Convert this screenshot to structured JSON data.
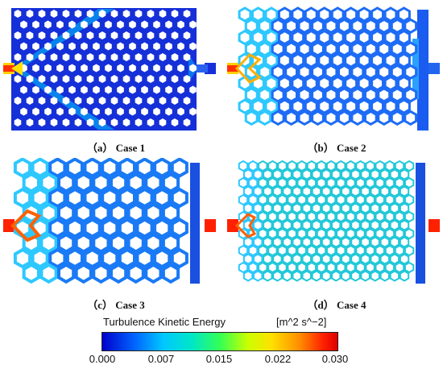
{
  "panels": [
    {
      "id": "case1",
      "caption": "（a） Case 1"
    },
    {
      "id": "case2",
      "caption": "（b） Case 2"
    },
    {
      "id": "case3",
      "caption": "（c） Case 3"
    },
    {
      "id": "case4",
      "caption": "（d） Case 4"
    }
  ],
  "colorbar": {
    "title": "Turbulence Kinetic Energy",
    "units": "[m^2 s^−2]",
    "ticks": [
      "0.000",
      "0.007",
      "0.015",
      "0.022",
      "0.030"
    ],
    "min": 0.0,
    "max": 0.03,
    "colors": [
      "#0000cc",
      "#0066ff",
      "#00c8ff",
      "#33ff55",
      "#ffe000",
      "#ff8c00",
      "#dd0000"
    ]
  }
}
